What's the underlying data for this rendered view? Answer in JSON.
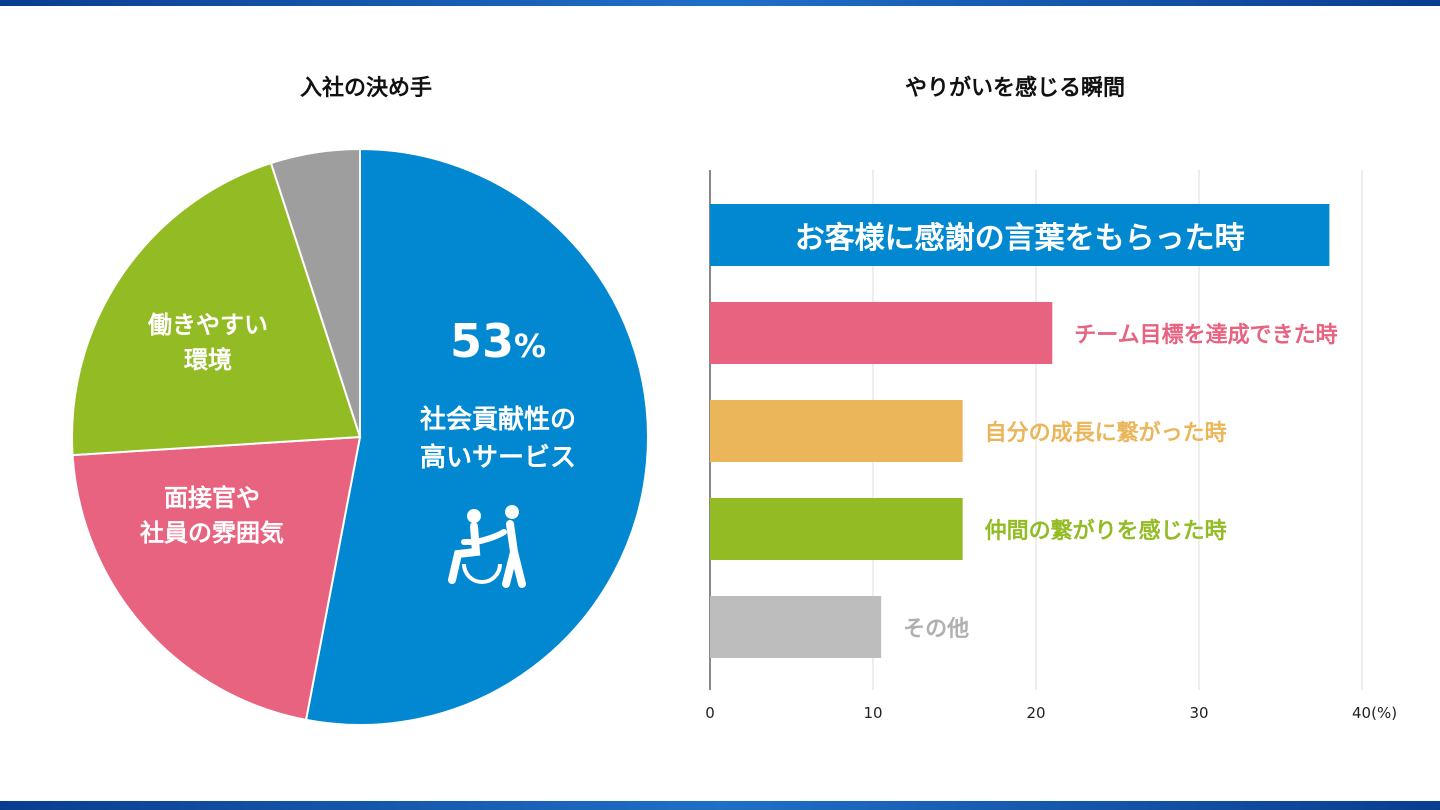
{
  "chart_data": [
    {
      "type": "pie",
      "title": "入社の決め手",
      "slices": [
        {
          "label": "社会貢献性の高いサービス",
          "value": 53,
          "value_label": "53%",
          "color": "#0288d1"
        },
        {
          "label": "面接官や社員の雰囲気",
          "value": 21,
          "color": "#e8637f"
        },
        {
          "label": "働きやすい環境",
          "value": 21,
          "color": "#93bb23"
        },
        {
          "label": "",
          "value": 5,
          "color": "#9e9e9e"
        }
      ],
      "pie_labels": {
        "pct": "53",
        "pct_unit": "%",
        "blue_l1": "社会貢献性の",
        "blue_l2": "高いサービス",
        "pink_l1": "面接官や",
        "pink_l2": "社員の雰囲気",
        "green_l1": "働きやすい",
        "green_l2": "環境"
      },
      "icon": "wheelchair-caregiver-icon"
    },
    {
      "type": "bar",
      "orientation": "horizontal",
      "title": "やりがいを感じる瞬間",
      "categories": [
        "お客様に感謝の言葉をもらった時",
        "チーム目標を達成できた時",
        "自分の成長に繋がった時",
        "仲間の繋がりを感じた時",
        "その他"
      ],
      "values": [
        38,
        21,
        15.5,
        15.5,
        10.5
      ],
      "colors": [
        "#0288d1",
        "#e8637f",
        "#ebb55a",
        "#93bb23",
        "#bdbdbd"
      ],
      "xlim": [
        0,
        40
      ],
      "xticks": [
        "0",
        "10",
        "20",
        "30",
        "40"
      ],
      "xunit": "(%)",
      "grid": true
    }
  ]
}
